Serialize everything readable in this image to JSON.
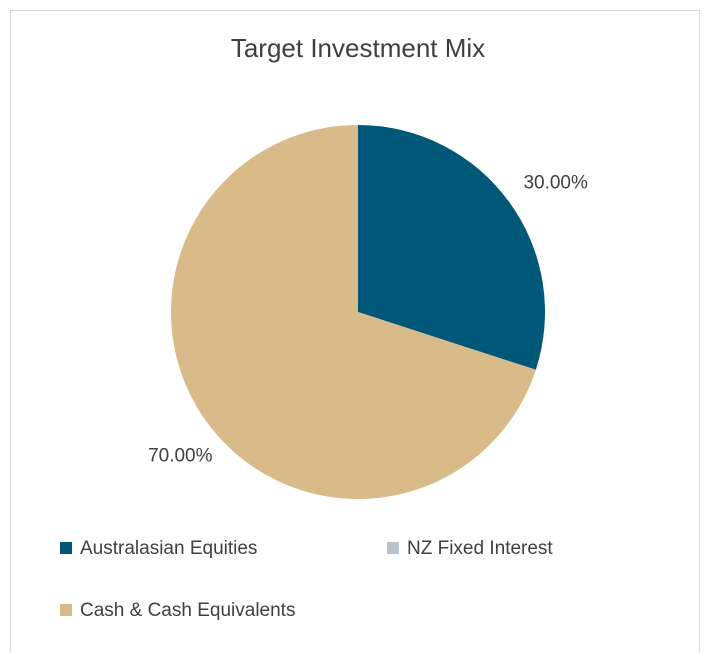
{
  "chart_data": {
    "type": "pie",
    "title": "Target Investment Mix",
    "categories": [
      "Australasian Equities",
      "NZ Fixed Interest",
      "Cash & Cash Equivalents"
    ],
    "values": [
      30,
      0,
      70
    ],
    "value_labels": [
      "30.00%",
      null,
      "70.00%"
    ],
    "colors": [
      "#005878",
      "#b8c3cc",
      "#d8bb88"
    ],
    "legend": "bottom"
  }
}
